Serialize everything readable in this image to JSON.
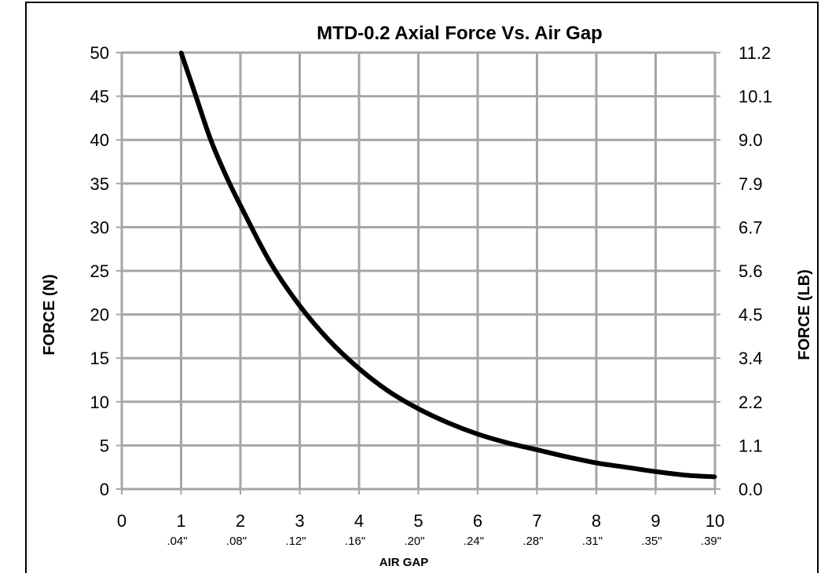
{
  "chart_data": {
    "type": "line",
    "title": "MTD-0.2 Axial Force Vs. Air Gap",
    "xlabel": "AIR GAP",
    "ylabel": "FORCE (N)",
    "y2label": "FORCE (LB)",
    "xlim": [
      0,
      10
    ],
    "ylim": [
      0,
      50
    ],
    "grid": true,
    "x_ticks": [
      "0",
      "1",
      "2",
      "3",
      "4",
      "5",
      "6",
      "7",
      "8",
      "9",
      "10"
    ],
    "x_subticks": [
      "",
      ".04\"",
      ".08\"",
      ".12\"",
      ".16\"",
      ".20\"",
      ".24\"",
      ".28\"",
      ".31\"",
      ".35\"",
      ".39\""
    ],
    "y_ticks": [
      "0",
      "5",
      "10",
      "15",
      "20",
      "25",
      "30",
      "35",
      "40",
      "45",
      "50"
    ],
    "y2_ticks": [
      "0.0",
      "1.1",
      "2.2",
      "3.4",
      "4.5",
      "5.6",
      "6.7",
      "7.9",
      "9.0",
      "10.1",
      "11.2"
    ],
    "series": [
      {
        "color": "#000000",
        "x": [
          1.0,
          1.25,
          1.5,
          1.75,
          2.0,
          2.5,
          3.0,
          3.5,
          4.0,
          4.5,
          5.0,
          5.5,
          6.0,
          6.5,
          7.0,
          7.5,
          8.0,
          8.5,
          9.0,
          9.5,
          10.0
        ],
        "y": [
          50.0,
          45.0,
          40.0,
          36.0,
          32.5,
          26.0,
          21.0,
          17.0,
          13.8,
          11.2,
          9.2,
          7.6,
          6.3,
          5.3,
          4.5,
          3.7,
          3.0,
          2.5,
          2.0,
          1.6,
          1.4
        ]
      }
    ]
  }
}
